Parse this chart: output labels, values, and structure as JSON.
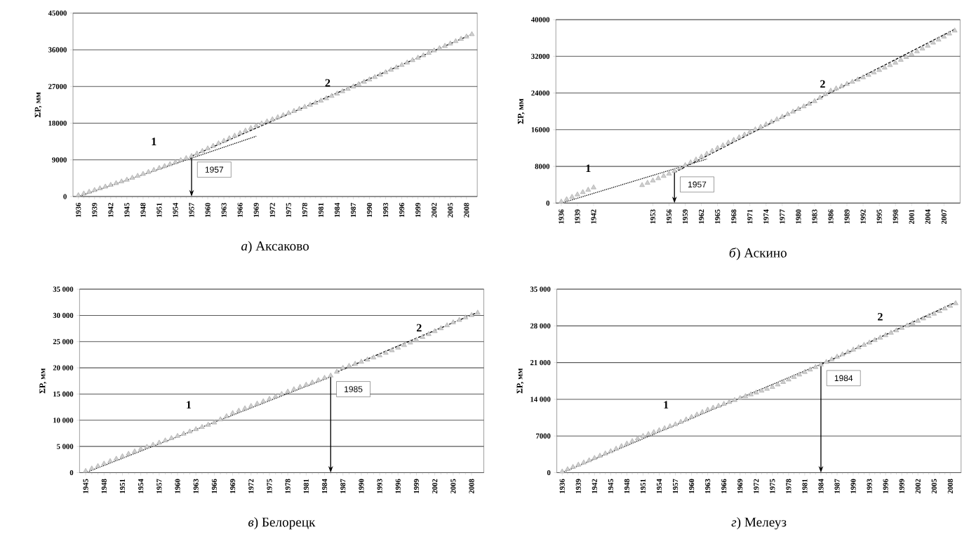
{
  "chart_data": [
    {
      "type": "scatter",
      "title": "*а*) Аксаково",
      "ylabel": "ΣP, мм",
      "grid": "y",
      "x": [
        1936,
        1937,
        1938,
        1939,
        1940,
        1941,
        1942,
        1943,
        1944,
        1945,
        1946,
        1947,
        1948,
        1949,
        1950,
        1951,
        1952,
        1953,
        1954,
        1955,
        1956,
        1957,
        1958,
        1959,
        1960,
        1961,
        1962,
        1963,
        1964,
        1965,
        1966,
        1967,
        1968,
        1969,
        1970,
        1971,
        1972,
        1973,
        1974,
        1975,
        1976,
        1977,
        1978,
        1979,
        1980,
        1981,
        1982,
        1983,
        1984,
        1985,
        1986,
        1987,
        1988,
        1989,
        1990,
        1991,
        1992,
        1993,
        1994,
        1995,
        1996,
        1997,
        1998,
        1999,
        2000,
        2001,
        2002,
        2003,
        2004,
        2005,
        2006,
        2007,
        2008,
        2009
      ],
      "xlim": [
        1935,
        2010
      ],
      "xticks": [
        1936,
        1939,
        1942,
        1945,
        1948,
        1951,
        1954,
        1957,
        1960,
        1963,
        1966,
        1969,
        1972,
        1975,
        1978,
        1981,
        1984,
        1987,
        1990,
        1993,
        1996,
        1999,
        2002,
        2005,
        2008
      ],
      "ylim": [
        0,
        45000
      ],
      "yticks": [
        0,
        9000,
        18000,
        27000,
        36000,
        45000
      ],
      "series": [
        {
          "marker": "triangle",
          "color": "#a6a6a6",
          "values": [
            300,
            720,
            1150,
            1570,
            1990,
            2410,
            2830,
            3260,
            3680,
            4100,
            4580,
            5060,
            5530,
            6010,
            6490,
            6970,
            7440,
            7920,
            8400,
            8900,
            9400,
            9900,
            10530,
            11150,
            11780,
            12400,
            13030,
            13650,
            14280,
            14900,
            15530,
            16150,
            16780,
            17400,
            17910,
            18420,
            18930,
            19430,
            19940,
            20450,
            20960,
            21470,
            21980,
            22480,
            22990,
            23500,
            24080,
            24660,
            25230,
            25810,
            26390,
            26970,
            27540,
            28120,
            28700,
            29290,
            29880,
            30480,
            31070,
            31660,
            32250,
            32840,
            33430,
            34030,
            34620,
            35210,
            35800,
            36370,
            36940,
            37510,
            38090,
            38660,
            39230,
            39800
          ]
        },
        {
          "type": "line",
          "line_style": "dotted",
          "color": "#000000",
          "x": [
            1936,
            1969
          ],
          "values": [
            0,
            14800
          ]
        },
        {
          "type": "line",
          "line_style": "dashed",
          "color": "#000000",
          "x": [
            1957,
            2009
          ],
          "values": [
            9900,
            39800
          ]
        }
      ],
      "annotations": [
        "1",
        "2"
      ],
      "ref_lines": [
        {
          "axis": "x",
          "value": 1957,
          "label": "1957"
        }
      ]
    },
    {
      "type": "scatter",
      "title": "*б*) Аскино",
      "ylabel": "ΣP, мм",
      "grid": "y",
      "x": [
        1936,
        1937,
        1938,
        1939,
        1940,
        1941,
        1942,
        1951,
        1952,
        1953,
        1954,
        1955,
        1956,
        1957,
        1958,
        1959,
        1960,
        1961,
        1962,
        1963,
        1964,
        1965,
        1966,
        1967,
        1968,
        1969,
        1970,
        1971,
        1972,
        1973,
        1974,
        1975,
        1976,
        1977,
        1978,
        1979,
        1980,
        1981,
        1982,
        1983,
        1984,
        1985,
        1986,
        1987,
        1988,
        1989,
        1990,
        1991,
        1992,
        1993,
        1994,
        1995,
        1996,
        1997,
        1998,
        1999,
        2000,
        2001,
        2002,
        2003,
        2004,
        2005,
        2006,
        2007,
        2008,
        2009
      ],
      "xlim": [
        1935,
        2010
      ],
      "xticks": [
        1936,
        1939,
        1942,
        1953,
        1956,
        1959,
        1962,
        1965,
        1968,
        1971,
        1974,
        1977,
        1980,
        1983,
        1986,
        1989,
        1992,
        1995,
        1998,
        2001,
        2004,
        2007
      ],
      "ylim": [
        0,
        40000
      ],
      "yticks": [
        0,
        8000,
        16000,
        24000,
        32000,
        40000
      ],
      "series": [
        {
          "marker": "triangle",
          "color": "#a6a6a6",
          "values": [
            300,
            820,
            1330,
            1850,
            2370,
            2880,
            3400,
            3900,
            4400,
            4900,
            5400,
            5900,
            6400,
            7000,
            7620,
            8240,
            8860,
            9480,
            10100,
            10730,
            11370,
            12000,
            12580,
            13170,
            13750,
            14330,
            14920,
            15500,
            16050,
            16600,
            17150,
            17700,
            18250,
            18800,
            19370,
            19930,
            20500,
            21070,
            21630,
            22200,
            22970,
            23730,
            24500,
            24980,
            25470,
            25950,
            26430,
            26920,
            27400,
            27930,
            28470,
            29000,
            29530,
            30070,
            30600,
            31220,
            31830,
            32450,
            33070,
            33680,
            34300,
            34960,
            35620,
            36280,
            36940,
            37600
          ]
        },
        {
          "type": "line",
          "line_style": "dotted",
          "color": "#000000",
          "x": [
            1936,
            1963
          ],
          "values": [
            0,
            9600
          ]
        },
        {
          "type": "line",
          "line_style": "dashed",
          "color": "#000000",
          "x": [
            1957,
            2009
          ],
          "values": [
            6700,
            37900
          ]
        }
      ],
      "annotations": [
        "1",
        "2"
      ],
      "ref_lines": [
        {
          "axis": "x",
          "value": 1957,
          "label": "1957"
        }
      ]
    },
    {
      "type": "scatter",
      "title": "*в*) Белорецк",
      "ylabel": "ΣP, мм",
      "grid": "y",
      "x": [
        1945,
        1946,
        1947,
        1948,
        1949,
        1950,
        1951,
        1952,
        1953,
        1954,
        1955,
        1956,
        1957,
        1958,
        1959,
        1960,
        1961,
        1962,
        1963,
        1964,
        1965,
        1966,
        1967,
        1968,
        1969,
        1970,
        1971,
        1972,
        1973,
        1974,
        1975,
        1976,
        1977,
        1978,
        1979,
        1980,
        1981,
        1982,
        1983,
        1984,
        1985,
        1986,
        1987,
        1988,
        1989,
        1990,
        1991,
        1992,
        1993,
        1994,
        1995,
        1996,
        1997,
        1998,
        1999,
        2000,
        2001,
        2002,
        2003,
        2004,
        2005,
        2006,
        2007,
        2008,
        2009
      ],
      "xlim": [
        1944,
        2010
      ],
      "xticks": [
        1945,
        1948,
        1951,
        1954,
        1957,
        1960,
        1963,
        1966,
        1969,
        1972,
        1975,
        1978,
        1981,
        1984,
        1987,
        1990,
        1993,
        1996,
        1999,
        2002,
        2005,
        2008
      ],
      "ylim": [
        0,
        35000
      ],
      "yticks": [
        0,
        {
          "value": 5000,
          "label": "5 000"
        },
        {
          "value": 10000,
          "label": "10 000"
        },
        {
          "value": 15000,
          "label": "15 000"
        },
        {
          "value": 20000,
          "label": "20 000"
        },
        {
          "value": 25000,
          "label": "25 000"
        },
        {
          "value": 30000,
          "label": "30 000"
        },
        {
          "value": 35000,
          "label": "35 000"
        }
      ],
      "series": [
        {
          "marker": "triangle",
          "color": "#a6a6a6",
          "values": [
            300,
            770,
            1230,
            1700,
            2170,
            2630,
            3100,
            3570,
            4030,
            4500,
            4900,
            5300,
            5700,
            6130,
            6560,
            6980,
            7410,
            7840,
            8270,
            8690,
            9120,
            9550,
            10150,
            10750,
            11350,
            11800,
            12250,
            12700,
            13150,
            13600,
            14050,
            14520,
            14980,
            15450,
            15890,
            16320,
            16760,
            17190,
            17630,
            18060,
            18500,
            19230,
            19950,
            20350,
            20750,
            21150,
            21550,
            21950,
            22350,
            22840,
            23330,
            23830,
            24320,
            24810,
            25300,
            25860,
            26420,
            26980,
            27530,
            28090,
            28650,
            29110,
            29580,
            30040,
            30500
          ]
        },
        {
          "type": "line",
          "line_style": "dotted",
          "color": "#000000",
          "x": [
            1945,
            1985
          ],
          "values": [
            0,
            18300
          ]
        },
        {
          "type": "line",
          "line_style": "dashed",
          "color": "#000000",
          "x": [
            1986,
            2009
          ],
          "values": [
            19200,
            30600
          ]
        }
      ],
      "annotations": [
        "1",
        "2"
      ],
      "ref_lines": [
        {
          "axis": "x",
          "value": 1985,
          "label": "1985"
        }
      ]
    },
    {
      "type": "scatter",
      "title": "*г*) Мелеуз",
      "ylabel": "ΣP, мм",
      "grid": "y",
      "x": [
        1936,
        1937,
        1938,
        1939,
        1940,
        1941,
        1942,
        1943,
        1944,
        1945,
        1946,
        1947,
        1948,
        1949,
        1950,
        1951,
        1952,
        1953,
        1954,
        1955,
        1956,
        1957,
        1958,
        1959,
        1960,
        1961,
        1962,
        1963,
        1964,
        1965,
        1966,
        1967,
        1968,
        1969,
        1970,
        1971,
        1972,
        1973,
        1974,
        1975,
        1976,
        1977,
        1978,
        1979,
        1980,
        1981,
        1982,
        1983,
        1984,
        1985,
        1986,
        1987,
        1988,
        1989,
        1990,
        1991,
        1992,
        1993,
        1994,
        1995,
        1996,
        1997,
        1998,
        1999,
        2000,
        2001,
        2002,
        2003,
        2004,
        2005,
        2006,
        2007,
        2008,
        2009
      ],
      "xlim": [
        1935,
        2010
      ],
      "xticks": [
        1936,
        1939,
        1942,
        1945,
        1948,
        1951,
        1954,
        1957,
        1960,
        1963,
        1966,
        1969,
        1972,
        1975,
        1978,
        1981,
        1984,
        1987,
        1990,
        1993,
        1996,
        1999,
        2002,
        2005,
        2008
      ],
      "ylim": [
        0,
        35000
      ],
      "yticks": [
        0,
        7000,
        {
          "value": 14000,
          "label": "14 000"
        },
        {
          "value": 21000,
          "label": "21 000"
        },
        {
          "value": 28000,
          "label": "28 000"
        },
        {
          "value": 35000,
          "label": "35 000"
        }
      ],
      "series": [
        {
          "marker": "triangle",
          "color": "#a6a6a6",
          "values": [
            200,
            630,
            1060,
            1490,
            1920,
            2350,
            2780,
            3210,
            3640,
            4070,
            4550,
            5040,
            5520,
            6000,
            6490,
            6970,
            7340,
            7710,
            8090,
            8460,
            8830,
            9200,
            9670,
            10130,
            10600,
            11070,
            11530,
            12000,
            12370,
            12730,
            13100,
            13470,
            13830,
            14200,
            14560,
            14910,
            15270,
            15620,
            15980,
            16330,
            16800,
            17280,
            17750,
            18230,
            18700,
            19180,
            19650,
            20130,
            20600,
            21100,
            21600,
            22100,
            22550,
            23000,
            23450,
            23900,
            24350,
            24800,
            25270,
            25730,
            26200,
            26670,
            27130,
            27600,
            28050,
            28500,
            28950,
            29400,
            29850,
            30300,
            30800,
            31300,
            31800,
            32300
          ]
        },
        {
          "type": "line",
          "line_style": "dotted",
          "color": "#000000",
          "x": [
            1936,
            1990
          ],
          "values": [
            0,
            23300
          ]
        },
        {
          "type": "line",
          "line_style": "dashed",
          "color": "#000000",
          "x": [
            1984,
            2009
          ],
          "values": [
            20600,
            32500
          ]
        }
      ],
      "annotations": [
        "1",
        "2"
      ],
      "ref_lines": [
        {
          "axis": "x",
          "value": 1984,
          "label": "1984"
        }
      ]
    }
  ]
}
